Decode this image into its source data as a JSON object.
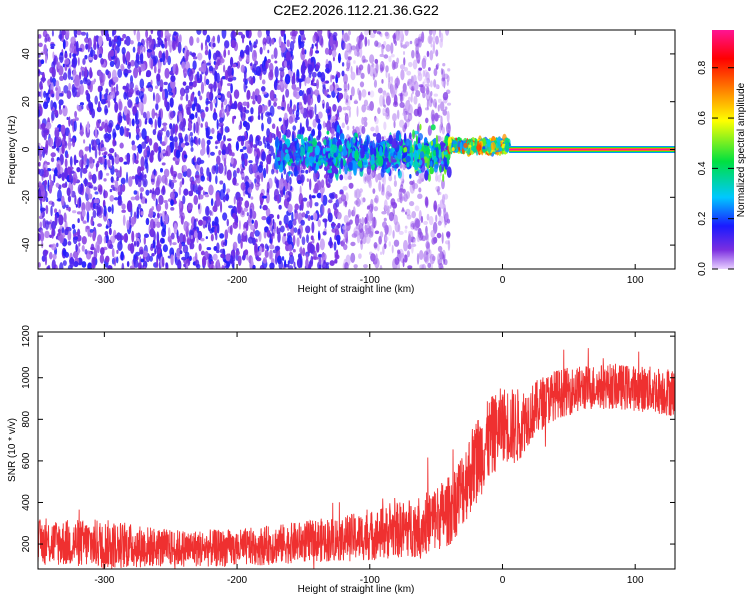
{
  "title": "C2E2.2026.112.21.36.G22",
  "chart_data": [
    {
      "type": "heatmap",
      "xlabel": "Height of straight line (km)",
      "ylabel": "Frequency (Hz)",
      "xlim": [
        -350,
        130
      ],
      "ylim": [
        -50,
        50
      ],
      "xticks": [
        -300,
        -200,
        -100,
        0,
        100
      ],
      "yticks": [
        -40,
        -20,
        0,
        20,
        40
      ],
      "colorbar": {
        "label": "Normalized spectral amplitude",
        "range": [
          0.0,
          0.95
        ],
        "ticks": [
          0.0,
          0.2,
          0.4,
          0.6,
          0.8
        ],
        "tick_labels": [
          "0.0",
          "0.2",
          "0.4",
          "0.6",
          "0.8"
        ],
        "colormap": [
          "#e8d0ff",
          "#7b2fe0",
          "#1a1aff",
          "#00c8ff",
          "#00e040",
          "#ffff00",
          "#ff8000",
          "#ff0000",
          "#ff1493"
        ]
      },
      "regions": [
        {
          "x_range": [
            -350,
            -120
          ],
          "freq_range": [
            -50,
            50
          ],
          "amplitude": 0.08,
          "pattern": "noise"
        },
        {
          "x_range": [
            -120,
            -40
          ],
          "freq_range": [
            -50,
            50
          ],
          "amplitude": 0.03,
          "pattern": "faint noise"
        },
        {
          "x_range": [
            -170,
            -40
          ],
          "freq_range": [
            -20,
            10
          ],
          "amplitude": 0.2,
          "pattern": "spread"
        },
        {
          "x_range": [
            -40,
            5
          ],
          "freq_range": [
            -3,
            5
          ],
          "amplitude": 0.5,
          "pattern": "narrowing"
        },
        {
          "x_range": [
            5,
            130
          ],
          "freq_range": [
            -1,
            1
          ],
          "amplitude": 0.9,
          "pattern": "carrier line"
        }
      ]
    },
    {
      "type": "line",
      "xlabel": "Height of straight line (km)",
      "ylabel": "SNR (10 * v/v)",
      "xlim": [
        -350,
        130
      ],
      "ylim": [
        80,
        1220
      ],
      "xticks": [
        -300,
        -200,
        -100,
        0,
        100
      ],
      "yticks": [
        200,
        400,
        600,
        800,
        1000,
        1200
      ],
      "color": "#ef3030",
      "series": [
        {
          "x": [
            -350,
            -300,
            -250,
            -200,
            -150,
            -100,
            -60,
            -40,
            -30,
            -20,
            -10,
            0,
            10,
            20,
            30,
            40,
            60,
            80,
            100,
            130
          ],
          "y_mean": [
            210,
            200,
            180,
            180,
            210,
            240,
            290,
            360,
            470,
            600,
            700,
            780,
            760,
            820,
            880,
            920,
            950,
            960,
            950,
            930
          ],
          "y_spread": [
            110,
            120,
            90,
            90,
            100,
            120,
            150,
            170,
            190,
            210,
            200,
            180,
            190,
            140,
            130,
            120,
            110,
            110,
            110,
            120
          ]
        }
      ]
    }
  ]
}
